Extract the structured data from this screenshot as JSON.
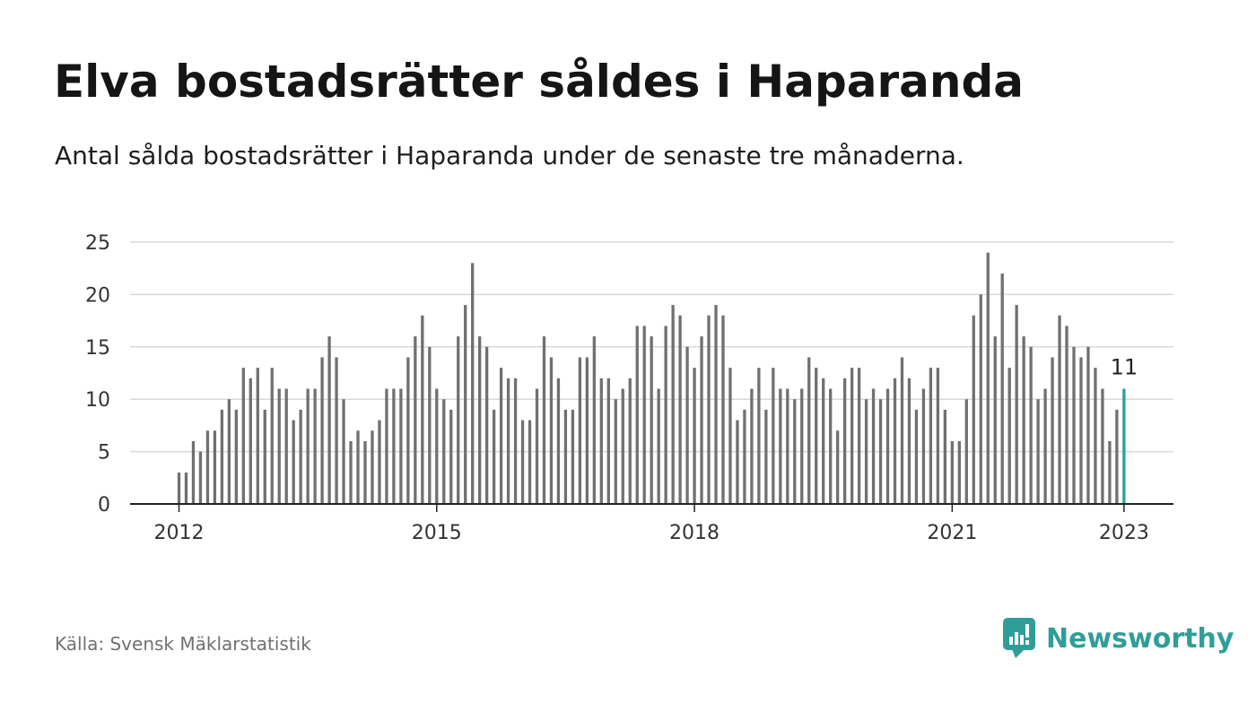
{
  "title": "Elva bostadsrätter såldes i Haparanda",
  "subtitle": "Antal sålda bostadsrätter i Haparanda under de senaste tre månaderna.",
  "source": "Källa: Svensk Mäklarstatistik",
  "brand": {
    "name": "Newsworthy",
    "icon": "newsworthy-logo-icon",
    "color": "#2f9e98"
  },
  "colors": {
    "bar": "#707070",
    "highlight": "#26a39c",
    "grid": "#d9d9d9",
    "axis": "#222222"
  },
  "chart_data": {
    "type": "bar",
    "title": "Elva bostadsrätter såldes i Haparanda",
    "xlabel": "",
    "ylabel": "",
    "ylim": [
      0,
      25
    ],
    "y_ticks": [
      0,
      5,
      10,
      15,
      20,
      25
    ],
    "x_ticks": [
      {
        "label": "2012",
        "index": 0
      },
      {
        "label": "2015",
        "index": 36
      },
      {
        "label": "2018",
        "index": 72
      },
      {
        "label": "2021",
        "index": 108
      },
      {
        "label": "2023",
        "index": 132
      }
    ],
    "start": "2012-01",
    "frequency": "monthly",
    "series": [
      {
        "name": "Antal sålda bostadsrätter (senaste tre månaderna)",
        "values": [
          3,
          3,
          6,
          5,
          7,
          7,
          9,
          10,
          9,
          13,
          12,
          13,
          9,
          13,
          11,
          11,
          8,
          9,
          11,
          11,
          14,
          16,
          14,
          10,
          6,
          7,
          6,
          7,
          8,
          11,
          11,
          11,
          14,
          16,
          18,
          15,
          11,
          10,
          9,
          16,
          19,
          23,
          16,
          15,
          9,
          13,
          12,
          12,
          8,
          8,
          11,
          16,
          14,
          12,
          9,
          9,
          14,
          14,
          16,
          12,
          12,
          10,
          11,
          12,
          17,
          17,
          16,
          11,
          17,
          19,
          18,
          15,
          13,
          16,
          18,
          19,
          18,
          13,
          8,
          9,
          11,
          13,
          9,
          13,
          11,
          11,
          10,
          11,
          14,
          13,
          12,
          11,
          7,
          12,
          13,
          13,
          10,
          11,
          10,
          11,
          12,
          14,
          12,
          9,
          11,
          13,
          13,
          9,
          6,
          6,
          10,
          18,
          20,
          24,
          16,
          22,
          13,
          19,
          16,
          15,
          10,
          11,
          14,
          18,
          17,
          15,
          14,
          15,
          13,
          11,
          6,
          9,
          11
        ]
      }
    ],
    "highlight": {
      "index": 132,
      "value": 11,
      "label": "11"
    }
  }
}
